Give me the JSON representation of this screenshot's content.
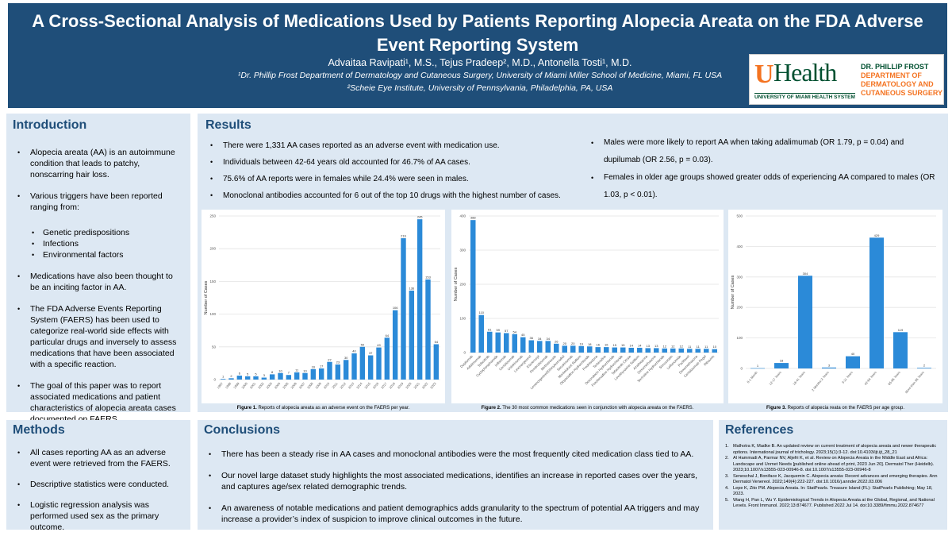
{
  "header": {
    "title": "A Cross-Sectional Analysis of Medications Used by Patients Reporting Alopecia Areata on the FDA Adverse Event Reporting System",
    "authors": "Advaitaa Ravipati¹, M.S., Tejus Pradeep², M.D., Antonella Tosti¹, M.D.",
    "affiliation1": "¹Dr. Phillip Frost Department of Dermatology and Cutaneous Surgery, University of Miami Miller School of Medicine, Miami, FL USA",
    "affiliation2": "²Scheie Eye Institute, University of Pennsylvania, Philadelphia, PA, USA",
    "logo": {
      "u": "U",
      "health": "Health",
      "subtitle": "UNIVERSITY OF MIAMI HEALTH SYSTEM",
      "dept_line1": "DR. PHILLIP FROST",
      "dept_line2": "DEPARTMENT OF",
      "dept_line3": "DERMATOLOGY AND",
      "dept_line4": "CUTANEOUS SURGERY"
    }
  },
  "introduction": {
    "heading": "Introduction",
    "bullet1": "Alopecia areata (AA) is an autoimmune condition that leads to patchy, nonscarring hair loss.",
    "bullet2": "Various triggers have been reported ranging from:",
    "sub1": "Genetic predispositions",
    "sub2": "Infections",
    "sub3": "Environmental factors",
    "bullet3": "Medications have also been thought to be an inciting factor in AA.",
    "bullet4": "The FDA Adverse Events Reporting System (FAERS) has been used to categorize real-world side effects with particular drugs and inversely to assess medications that have been associated with a specific reaction.",
    "bullet5": "The goal of this paper was to report associated medications and patient characteristics of alopecia areata cases documented on FAERS."
  },
  "results": {
    "heading": "Results",
    "left": [
      "There were 1,331 AA cases reported as an adverse event with medication use.",
      "Individuals between 42-64 years old accounted for 46.7% of AA cases.",
      "75.6% of AA reports were in females while 24.4% were seen in males.",
      "Monoclonal antibodies accounted for 6 out of the top 10 drugs with the highest number of cases."
    ],
    "right": [
      "Males were more likely to report AA when taking adalimumab (OR 1.79, p = 0.04) and dupilumab (OR 2.56, p = 0.03).",
      "Females in older age groups showed greater odds of experiencing AA compared to males (OR 1.03, p < 0.01)."
    ]
  },
  "captions": {
    "fig1_label": "Figure 1.",
    "fig1_text": " Reports of alopecia areata as an adverse event on the FAERS per year.",
    "fig2_label": "Figure 2.",
    "fig2_text": " The 30 most common medications seen in conjunction with alopecia areata on the FAERS.",
    "fig3_label": "Figure 3.",
    "fig3_text": " Reports of alopecia reata on the FAERS per age group."
  },
  "chart_data": [
    {
      "type": "bar",
      "title": "Reports of alopecia areata as an adverse event on the FAERS per year",
      "xlabel": "",
      "ylabel": "Number of Cases",
      "ylim": [
        0,
        250
      ],
      "yticks": [
        0,
        50,
        100,
        150,
        200,
        250
      ],
      "grid": true,
      "categories": [
        "1997",
        "1998",
        "1999",
        "2000",
        "2001",
        "2002",
        "2003",
        "2004",
        "2005",
        "2006",
        "2007",
        "2008",
        "2009",
        "2010",
        "2011",
        "2012",
        "2013",
        "2014",
        "2015",
        "2016",
        "2017",
        "2018",
        "2019",
        "2020",
        "2021",
        "2022",
        "2023"
      ],
      "values": [
        1,
        2,
        6,
        5,
        5,
        3,
        8,
        10,
        7,
        11,
        10,
        16,
        17,
        27,
        23,
        30,
        40,
        50,
        37,
        49,
        64,
        106,
        216,
        136,
        245,
        153,
        54
      ],
      "color": "#2b8ad8"
    },
    {
      "type": "bar",
      "title": "The 30 most common medications seen in conjunction with alopecia areata on the FAERS",
      "xlabel": "",
      "ylabel": "Number of Cases",
      "ylim": [
        0,
        400
      ],
      "yticks": [
        0,
        100,
        200,
        300,
        400
      ],
      "grid": true,
      "categories": [
        "Dupilumab",
        "Adalimumab",
        "Tofacitinib",
        "Cyclophosphamide",
        "Infliximab",
        "Certolizumab",
        "Ustekinumab",
        "Levonorgestrel",
        "Etanercept",
        "Pembrolizumab",
        "Methotrexate",
        "Levonorgestrel/Ethinylestradiol",
        "Secukinumab",
        "Montelukast Sodium",
        "Olopatadine Hydrochloride",
        "Prednisolone",
        "Terbinafine",
        "Doxorubicin Hydrochloride",
        "Fexofenadine Hydrochloride",
        "Tofacitinib Citrate",
        "Levothyroxine Sodium",
        "Azathioprine",
        "Dexamethasone",
        "Sertraline Hydrochloride",
        "Simvastatin",
        "Leflunomide",
        "Paclitaxel",
        "Dexamethasone",
        "Certolizumab Pegol",
        "Ribavirin"
      ],
      "values": [
        388,
        110,
        61,
        59,
        57,
        54,
        45,
        36,
        34,
        34,
        26,
        20,
        20,
        19,
        18,
        16,
        16,
        15,
        15,
        14,
        14,
        13,
        13,
        12,
        12,
        12,
        11,
        11,
        11,
        10
      ],
      "color": "#2b8ad8"
    },
    {
      "type": "bar",
      "title": "Reports of alopecia reata on the FAERS per age group",
      "xlabel": "",
      "ylabel": "Number of Cases",
      "ylim": [
        0,
        500
      ],
      "yticks": [
        0,
        100,
        200,
        300,
        400,
        500
      ],
      "grid": true,
      "categories": [
        "0-1 Month",
        "12-17 Years",
        "18-41 Years",
        "2 Months-2 Years",
        "3-11 Years",
        "42-64 Years",
        "65-85 Years",
        "More than 85 Years"
      ],
      "values": [
        1,
        18,
        304,
        3,
        40,
        429,
        119,
        2
      ],
      "color": "#2b8ad8"
    }
  ],
  "methods": {
    "heading": "Methods",
    "items": [
      "All cases reporting AA as an adverse event were retrieved from the FAERS.",
      "Descriptive statistics were conducted.",
      "Logistic regression analysis was performed used sex as the primary outcome."
    ]
  },
  "conclusions": {
    "heading": "Conclusions",
    "items": [
      "There has been a steady rise in AA cases and monoclonal antibodies were the most frequently cited medication class tied to AA.",
      "Our novel large dataset study highlights the most associated medications, identifies an increase in reported cases over the years, and captures age/sex related demographic trends.",
      "An awareness of notable medications and patient demographics adds granularity to the spectrum of potential AA triggers and may increase a provider’s index of suspicion to improve clinical outcomes in the future."
    ]
  },
  "references": {
    "heading": "References",
    "items": [
      {
        "n": "1.",
        "text": "Malhotra K, Madke B. An updated review on current treatment of alopecia areata and newer therapeutic options. International journal of trichology. 2023;15(1):3-12. doi:10.4103/ijt.ijt_28_21"
      },
      {
        "n": "2.",
        "text": "Al Hammadi A, Parmar NV, Aljefri K, et al. Review on Alopecia Areata in the Middle East and Africa: Landscape and Unmet Needs [published online ahead of print, 2023 Jun 20]. Dermatol Ther (Heidelb). 2023;10.1007/s13555-023-00946-8. doi:10.1007/s13555-023-00946-8"
      },
      {
        "n": "3.",
        "text": "Seneschal J, Boniface K, Jacquemin C. Alopecia areata: Recent advances and emerging therapies. Ann Dermatol Venereol. 2022;149(4):222-227. doi:10.1016/j.annder.2022.03.006"
      },
      {
        "n": "4.",
        "text": "Lepe K, Zito PM. Alopecia Areata. In: StatPearls. Treasure Island (FL): StatPearls Publishing; May 18, 2023."
      },
      {
        "n": "5.",
        "text": "Wang H, Pan L, Wu Y. Epidemiological Trends in Alopecia Areata at the Global, Regional, and National Levels. Front Immunol. 2022;13:874677. Published 2022 Jul 14. doi:10.3389/fimmu.2022.874677"
      }
    ]
  }
}
